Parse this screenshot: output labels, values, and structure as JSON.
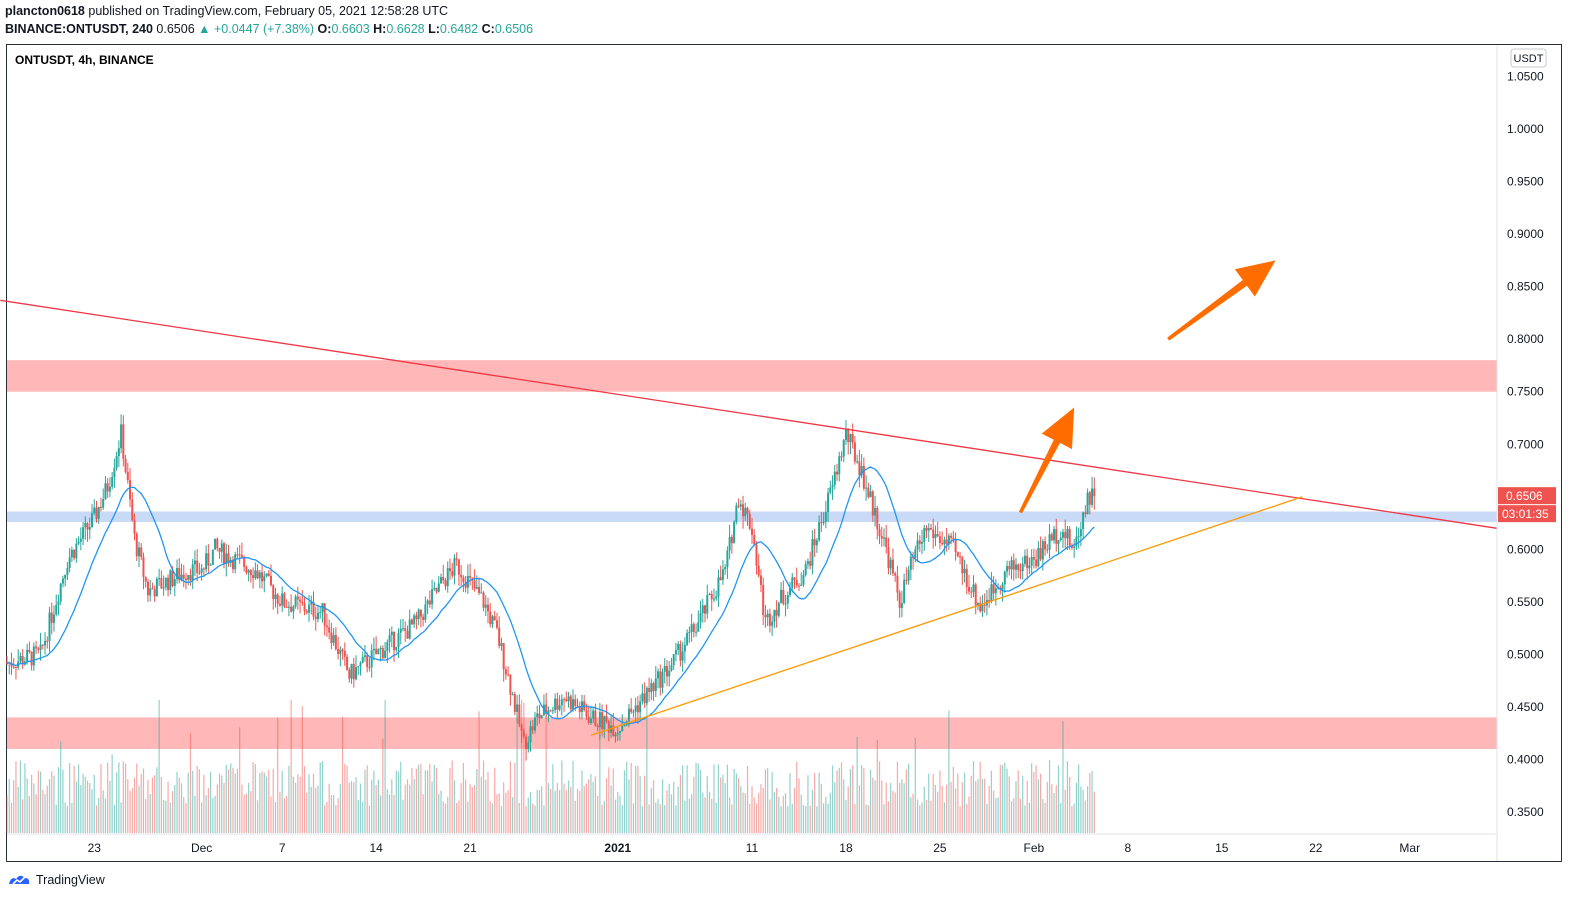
{
  "header": {
    "author": "plancton0618",
    "published_text": "published on TradingView.com, February 05, 2021 12:58:28 UTC",
    "symbol_line_symbol": "BINANCE:ONTUSDT, 240",
    "last": "0.6506",
    "change": "▲ +0.0447 (+7.38%)",
    "o_label": "O:",
    "o_val": "0.6603",
    "h_label": "H:",
    "h_val": "0.6628",
    "l_label": "L:",
    "l_val": "0.6482",
    "c_label": "C:",
    "c_val": "0.6506"
  },
  "footer": {
    "brand": "TradingView"
  },
  "colors": {
    "up": "#26a69a",
    "down": "#ef5350",
    "ma": "#2196f3",
    "resistance_trend": "#f23645",
    "support_trend": "#ff9800",
    "zone_red": "#ffb3b3",
    "zone_blue": "#c3d6f5",
    "arrow": "#ff6d00",
    "price_badge": "#ef5350"
  },
  "chart_data": {
    "type": "candlestick",
    "title": "ONTUSDT, 4h, BINANCE",
    "currency_label": "USDT",
    "y_ticks": [
      "1.0500",
      "1.0000",
      "0.9500",
      "0.9000",
      "0.8500",
      "0.8000",
      "0.7500",
      "0.7000",
      "0.6500",
      "0.6000",
      "0.5500",
      "0.5000",
      "0.4500",
      "0.4000",
      "0.3500"
    ],
    "ylim": [
      0.33,
      1.08
    ],
    "x_ticks": [
      {
        "label": "23",
        "date": "2020-11-23"
      },
      {
        "label": "Dec",
        "date": "2020-12-01"
      },
      {
        "label": "7",
        "date": "2020-12-07"
      },
      {
        "label": "14",
        "date": "2020-12-14"
      },
      {
        "label": "21",
        "date": "2020-12-21"
      },
      {
        "label": "2021",
        "date": "2021-01-01",
        "bold": true
      },
      {
        "label": "11",
        "date": "2021-01-11"
      },
      {
        "label": "18",
        "date": "2021-01-18"
      },
      {
        "label": "25",
        "date": "2021-01-25"
      },
      {
        "label": "Feb",
        "date": "2021-02-01"
      },
      {
        "label": "8",
        "date": "2021-02-08"
      },
      {
        "label": "15",
        "date": "2021-02-15"
      },
      {
        "label": "22",
        "date": "2021-02-22"
      },
      {
        "label": "Mar",
        "date": "2021-03-01"
      }
    ],
    "xrange": [
      "2020-11-16T12:00",
      "2021-03-07T12:00"
    ],
    "candles_range": [
      "2020-11-16T12:00",
      "2021-02-05T12:00"
    ],
    "price_anchors": [
      [
        "2020-11-16",
        0.49
      ],
      [
        "2020-11-19",
        0.5
      ],
      [
        "2020-11-21",
        0.59
      ],
      [
        "2020-11-23",
        0.63
      ],
      [
        "2020-11-24",
        0.66
      ],
      [
        "2020-11-25",
        0.71
      ],
      [
        "2020-11-26",
        0.61
      ],
      [
        "2020-11-27",
        0.56
      ],
      [
        "2020-11-30",
        0.58
      ],
      [
        "2020-12-01",
        0.58
      ],
      [
        "2020-12-02",
        0.6
      ],
      [
        "2020-12-05",
        0.58
      ],
      [
        "2020-12-07",
        0.55
      ],
      [
        "2020-12-10",
        0.54
      ],
      [
        "2020-12-12",
        0.48
      ],
      [
        "2020-12-14",
        0.5
      ],
      [
        "2020-12-17",
        0.53
      ],
      [
        "2020-12-19",
        0.57
      ],
      [
        "2020-12-20",
        0.585
      ],
      [
        "2020-12-22",
        0.55
      ],
      [
        "2020-12-23",
        0.52
      ],
      [
        "2020-12-24",
        0.47
      ],
      [
        "2020-12-25",
        0.415
      ],
      [
        "2020-12-26",
        0.44
      ],
      [
        "2020-12-28",
        0.46
      ],
      [
        "2020-12-30",
        0.44
      ],
      [
        "2021-01-01",
        0.43
      ],
      [
        "2021-01-03",
        0.46
      ],
      [
        "2021-01-05",
        0.49
      ],
      [
        "2021-01-07",
        0.53
      ],
      [
        "2021-01-09",
        0.58
      ],
      [
        "2021-01-10",
        0.65
      ],
      [
        "2021-01-11",
        0.62
      ],
      [
        "2021-01-12",
        0.53
      ],
      [
        "2021-01-13",
        0.55
      ],
      [
        "2021-01-15",
        0.58
      ],
      [
        "2021-01-17",
        0.66
      ],
      [
        "2021-01-18",
        0.71
      ],
      [
        "2021-01-19",
        0.68
      ],
      [
        "2021-01-20",
        0.64
      ],
      [
        "2021-01-21",
        0.6
      ],
      [
        "2021-01-22",
        0.55
      ],
      [
        "2021-01-23",
        0.59
      ],
      [
        "2021-01-24",
        0.62
      ],
      [
        "2021-01-26",
        0.6
      ],
      [
        "2021-01-28",
        0.545
      ],
      [
        "2021-01-30",
        0.58
      ],
      [
        "2021-02-01",
        0.59
      ],
      [
        "2021-02-03",
        0.62
      ],
      [
        "2021-02-04",
        0.6
      ],
      [
        "2021-02-05",
        0.6506
      ]
    ],
    "moving_average": {
      "color": "#2196f3",
      "period_hint": "short"
    },
    "volume": {
      "shown": true,
      "units": "bars at bottom"
    },
    "zones": [
      {
        "from": 0.75,
        "to": 0.78,
        "color": "red"
      },
      {
        "from": 0.41,
        "to": 0.44,
        "color": "red"
      },
      {
        "from": 0.626,
        "to": 0.636,
        "color": "blue"
      }
    ],
    "trendlines": [
      {
        "name": "resistance",
        "from": [
          "2020-11-16",
          0.837
        ],
        "to": [
          "2021-03-07T12:00",
          0.62
        ]
      },
      {
        "name": "support",
        "from": [
          "2020-12-30",
          0.423
        ],
        "to": [
          "2021-02-21",
          0.65
        ]
      }
    ],
    "arrows": [
      {
        "from": [
          "2021-01-31",
          0.635
        ],
        "to": [
          "2021-02-04",
          0.735
        ]
      },
      {
        "from": [
          "2021-02-11",
          0.8
        ],
        "to": [
          "2021-02-19",
          0.875
        ]
      }
    ],
    "last_price_label": "0.6506",
    "countdown_label": "03:01:35"
  }
}
